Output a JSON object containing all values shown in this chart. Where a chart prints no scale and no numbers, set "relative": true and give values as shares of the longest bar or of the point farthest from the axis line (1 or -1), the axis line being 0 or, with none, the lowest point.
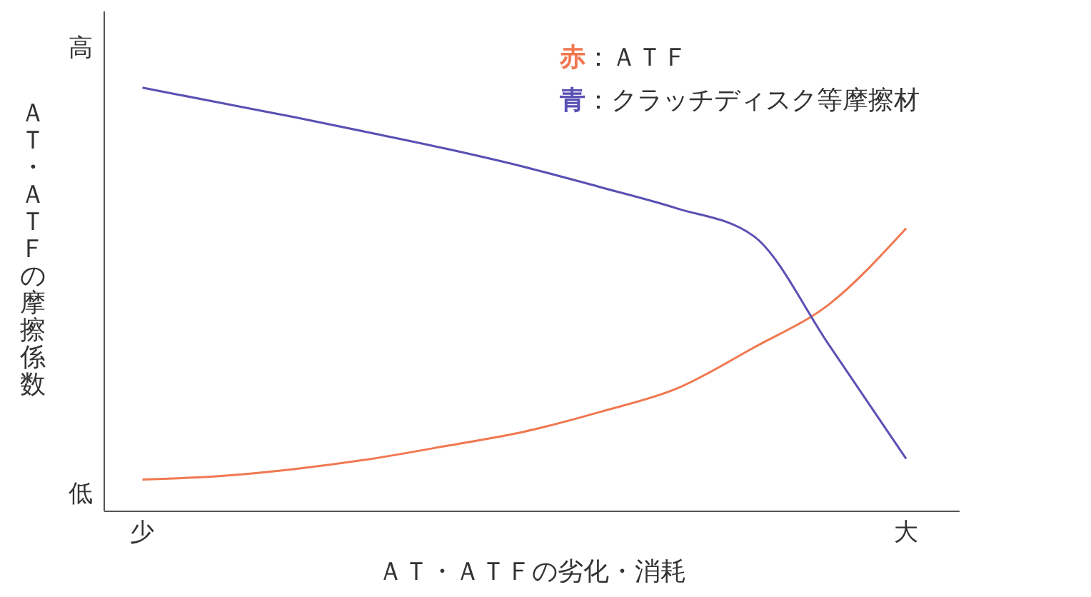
{
  "chart_data": {
    "type": "line",
    "relative": true,
    "xlabel": "ＡＴ・ＡＴＦの劣化・消耗",
    "ylabel": "ＡＴ・ＡＴＦの摩擦係数",
    "annotations": [
      "高",
      "低"
    ],
    "categories": [
      "少",
      null,
      null,
      null,
      null,
      null,
      null,
      null,
      null,
      null,
      "大"
    ],
    "series": [
      {
        "name": "赤：ＡＴＦ",
        "color": "#f07850",
        "values": [
          0.075,
          0.083,
          0.1,
          0.124,
          0.155,
          0.188,
          0.235,
          0.29,
          0.386,
          0.49,
          0.668
        ]
      },
      {
        "name": "青：クラッチディスク等摩擦材",
        "color": "#5a50b4",
        "values": [
          1,
          0.965,
          0.93,
          0.893,
          0.855,
          0.813,
          0.765,
          0.715,
          0.65,
          0.39,
          0.124
        ]
      }
    ],
    "legend": "top right",
    "marker": "none",
    "line_style": "solid",
    "grid": false
  }
}
